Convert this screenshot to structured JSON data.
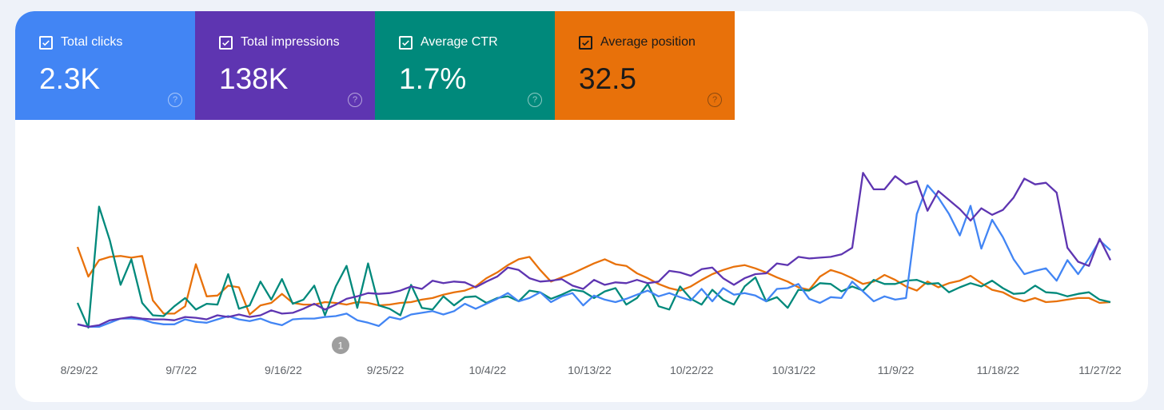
{
  "metrics": [
    {
      "label": "Total clicks",
      "value": "2.3K",
      "color": "#4285f4",
      "text": "light"
    },
    {
      "label": "Total impressions",
      "value": "138K",
      "color": "#5e35b1",
      "text": "light"
    },
    {
      "label": "Average CTR",
      "value": "1.7%",
      "color": "#00897b",
      "text": "light"
    },
    {
      "label": "Average position",
      "value": "32.5",
      "color": "#e8710a",
      "text": "dark"
    }
  ],
  "annotation_marker": "1",
  "chart_data": {
    "type": "line",
    "x_tick_labels": [
      "8/29/22",
      "9/7/22",
      "9/16/22",
      "9/25/22",
      "10/4/22",
      "10/13/22",
      "10/22/22",
      "10/31/22",
      "11/9/22",
      "11/18/22",
      "11/27/22"
    ],
    "series": [
      {
        "name": "Total impressions",
        "color": "#5e35b1",
        "values": [
          6,
          3,
          5,
          11,
          13,
          15,
          13,
          12,
          12,
          11,
          15,
          14,
          12,
          17,
          15,
          18,
          15,
          17,
          23,
          19,
          20,
          25,
          31,
          24,
          30,
          37,
          40,
          44,
          43,
          44,
          47,
          52,
          49,
          59,
          56,
          58,
          57,
          51,
          58,
          64,
          75,
          72,
          62,
          58,
          59,
          61,
          53,
          49,
          60,
          54,
          57,
          56,
          60,
          56,
          58,
          71,
          69,
          65,
          73,
          75,
          62,
          54,
          62,
          67,
          68,
          80,
          78,
          88,
          86,
          87,
          88,
          91,
          99,
          190,
          170,
          170,
          186,
          176,
          180,
          144,
          168,
          157,
          146,
          132,
          147,
          139,
          145,
          160,
          183,
          176,
          178,
          166,
          99,
          82,
          77,
          110,
          84
        ]
      },
      {
        "name": "Total clicks",
        "color": "#4285f4",
        "values": [
          6,
          3,
          3,
          8,
          13,
          13,
          12,
          8,
          6,
          6,
          12,
          9,
          8,
          12,
          16,
          12,
          10,
          13,
          8,
          5,
          12,
          13,
          13,
          15,
          16,
          19,
          11,
          8,
          4,
          15,
          12,
          18,
          20,
          22,
          18,
          22,
          31,
          25,
          31,
          37,
          44,
          34,
          38,
          45,
          33,
          40,
          44,
          29,
          41,
          36,
          33,
          37,
          42,
          47,
          40,
          44,
          39,
          35,
          49,
          34,
          50,
          42,
          44,
          41,
          34,
          49,
          50,
          55,
          37,
          32,
          39,
          38,
          58,
          46,
          34,
          40,
          36,
          38,
          140,
          175,
          160,
          140,
          114,
          150,
          98,
          133,
          112,
          85,
          67,
          71,
          74,
          59,
          84,
          67,
          86,
          108,
          96
        ]
      },
      {
        "name": "Average CTR",
        "color": "#00897b",
        "values": [
          32,
          2,
          149,
          108,
          54,
          85,
          32,
          17,
          16,
          28,
          38,
          24,
          31,
          30,
          67,
          25,
          29,
          58,
          36,
          61,
          31,
          36,
          53,
          17,
          52,
          77,
          26,
          80,
          29,
          25,
          17,
          54,
          26,
          24,
          40,
          29,
          39,
          40,
          32,
          38,
          40,
          34,
          47,
          45,
          37,
          42,
          48,
          46,
          38,
          46,
          50,
          30,
          38,
          55,
          28,
          24,
          52,
          37,
          30,
          48,
          36,
          30,
          52,
          63,
          34,
          39,
          26,
          48,
          47,
          56,
          55,
          46,
          52,
          47,
          60,
          55,
          55,
          59,
          60,
          55,
          56,
          45,
          51,
          56,
          52,
          59,
          50,
          43,
          44,
          53,
          45,
          44,
          40,
          43,
          45,
          36,
          33
        ]
      },
      {
        "name": "Average position",
        "color": "#e8710a",
        "values": [
          100,
          64,
          84,
          88,
          89,
          87,
          89,
          35,
          19,
          19,
          28,
          79,
          40,
          41,
          53,
          51,
          18,
          29,
          32,
          43,
          32,
          30,
          30,
          33,
          32,
          30,
          33,
          32,
          29,
          30,
          32,
          33,
          36,
          38,
          42,
          45,
          47,
          52,
          62,
          69,
          78,
          85,
          88,
          72,
          58,
          63,
          68,
          74,
          80,
          85,
          79,
          77,
          68,
          62,
          55,
          50,
          47,
          52,
          60,
          67,
          72,
          76,
          78,
          74,
          69,
          63,
          58,
          51,
          48,
          64,
          72,
          68,
          62,
          55,
          58,
          66,
          60,
          52,
          47,
          58,
          51,
          56,
          59,
          65,
          56,
          48,
          45,
          38,
          34,
          38,
          33,
          34,
          36,
          38,
          38,
          32,
          33
        ]
      }
    ]
  }
}
